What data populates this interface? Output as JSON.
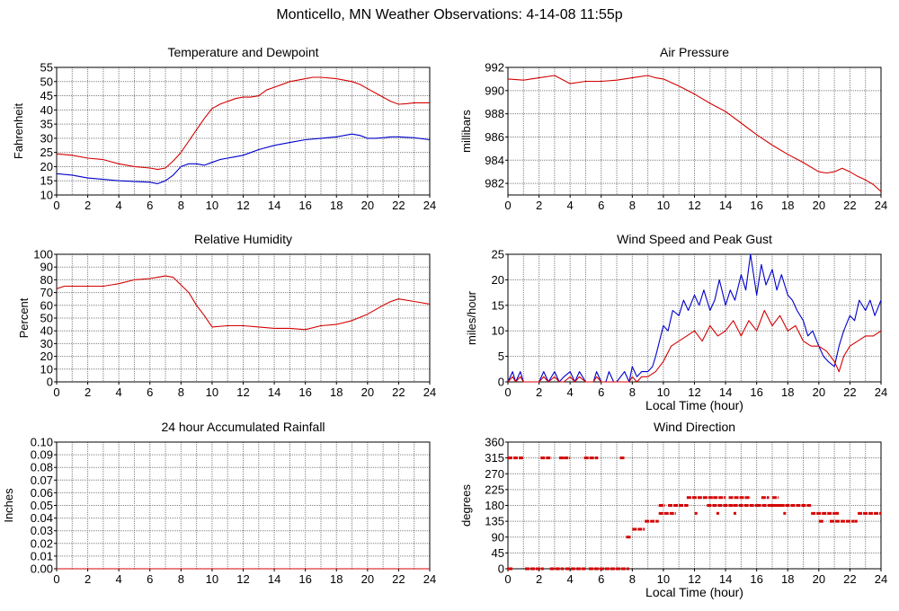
{
  "title": "Monticello, MN Weather Observations: 4-14-08 11:55p",
  "colors": {
    "red": "#d40000",
    "blue": "#0000cc",
    "grid": "#7f7f7f"
  },
  "chart_data": [
    {
      "id": "temp",
      "type": "line",
      "title": "Temperature and Dewpoint",
      "ylabel": "Fahrenheit",
      "xlabel": "",
      "xlim": [
        0,
        24
      ],
      "ylim": [
        10,
        55
      ],
      "xticks": [
        0,
        2,
        4,
        6,
        8,
        10,
        12,
        14,
        16,
        18,
        20,
        22,
        24
      ],
      "yticks": [
        10,
        15,
        20,
        25,
        30,
        35,
        40,
        45,
        50,
        55
      ],
      "grid": true,
      "series": [
        {
          "name": "Temperature",
          "color": "red",
          "x": [
            0,
            1,
            2,
            3,
            4,
            5,
            6,
            6.5,
            7,
            7.5,
            8,
            8.5,
            9,
            9.5,
            10,
            10.5,
            11,
            11.5,
            12,
            12.5,
            13,
            13.5,
            14,
            15,
            16,
            16.5,
            17,
            18,
            19,
            19.5,
            20,
            20.5,
            21,
            21.5,
            22,
            22.5,
            23,
            24
          ],
          "y": [
            24.5,
            24,
            23,
            22.5,
            21,
            20,
            19.5,
            19,
            19.5,
            22,
            25,
            29,
            33,
            37,
            40.5,
            42,
            43,
            44,
            44.5,
            44.5,
            45,
            47,
            48,
            50,
            51,
            51.5,
            51.5,
            51,
            50,
            49,
            47.5,
            46,
            44.5,
            43,
            42,
            42.2,
            42.5,
            42.5
          ]
        },
        {
          "name": "Dewpoint",
          "color": "blue",
          "x": [
            0,
            1,
            2,
            3,
            4,
            5,
            6,
            6.5,
            7,
            7.5,
            8,
            8.5,
            9,
            9.5,
            10,
            10.5,
            11,
            11.5,
            12,
            12.5,
            13,
            14,
            15,
            16,
            17,
            18,
            19,
            19.5,
            20,
            20.5,
            21,
            21.5,
            22,
            23,
            24
          ],
          "y": [
            17.5,
            17,
            16,
            15.5,
            15,
            14.8,
            14.5,
            14,
            15,
            17,
            20,
            21,
            21,
            20.5,
            21.5,
            22.5,
            23,
            23.5,
            24,
            25,
            26,
            27.5,
            28.5,
            29.5,
            30,
            30.5,
            31.5,
            31,
            30,
            30,
            30.2,
            30.5,
            30.5,
            30.2,
            29.5
          ]
        }
      ]
    },
    {
      "id": "pressure",
      "type": "line",
      "title": "Air Pressure",
      "ylabel": "millibars",
      "xlabel": "",
      "xlim": [
        0,
        24
      ],
      "ylim": [
        981,
        992
      ],
      "xticks": [
        0,
        2,
        4,
        6,
        8,
        10,
        12,
        14,
        16,
        18,
        20,
        22,
        24
      ],
      "yticks": [
        982,
        984,
        986,
        988,
        990,
        992
      ],
      "grid": true,
      "series": [
        {
          "name": "Pressure",
          "color": "red",
          "x": [
            0,
            1,
            2,
            3,
            4,
            5,
            6,
            7,
            8,
            9,
            9.5,
            10,
            11,
            12,
            13,
            14,
            15,
            16,
            17,
            18,
            19,
            20,
            20.5,
            21,
            21.5,
            22,
            22.5,
            23,
            23.5,
            24
          ],
          "y": [
            991,
            990.9,
            991.1,
            991.3,
            990.6,
            990.8,
            990.8,
            990.9,
            991.1,
            991.3,
            991.1,
            991,
            990.4,
            989.7,
            988.9,
            988.2,
            987.2,
            986.2,
            985.3,
            984.5,
            983.8,
            983,
            982.9,
            983,
            983.3,
            983,
            982.6,
            982.3,
            981.9,
            981.3
          ]
        }
      ]
    },
    {
      "id": "humidity",
      "type": "line",
      "title": "Relative Humidity",
      "ylabel": "Percent",
      "xlabel": "",
      "xlim": [
        0,
        24
      ],
      "ylim": [
        0,
        100
      ],
      "xticks": [
        0,
        2,
        4,
        6,
        8,
        10,
        12,
        14,
        16,
        18,
        20,
        22,
        24
      ],
      "yticks": [
        0,
        10,
        20,
        30,
        40,
        50,
        60,
        70,
        80,
        90,
        100
      ],
      "grid": true,
      "series": [
        {
          "name": "Relative Humidity",
          "color": "red",
          "x": [
            0,
            0.5,
            1,
            2,
            3,
            4,
            5,
            6,
            6.5,
            7,
            7.5,
            8,
            8.5,
            9,
            9.5,
            10,
            11,
            12,
            13,
            14,
            15,
            16,
            17,
            18,
            19,
            20,
            21,
            21.5,
            22,
            23,
            24
          ],
          "y": [
            73,
            75,
            75,
            75,
            75,
            77,
            80,
            81,
            82,
            83,
            82,
            76,
            70,
            60,
            52,
            43,
            44,
            44,
            43,
            42,
            42,
            41,
            44,
            45,
            48,
            53,
            60,
            63,
            65,
            63,
            61
          ]
        }
      ]
    },
    {
      "id": "wind",
      "type": "line",
      "title": "Wind Speed and Peak Gust",
      "ylabel": "miles/hour",
      "xlabel": "Local Time (hour)",
      "xlim": [
        0,
        24
      ],
      "ylim": [
        0,
        25
      ],
      "xticks": [
        0,
        2,
        4,
        6,
        8,
        10,
        12,
        14,
        16,
        18,
        20,
        22,
        24
      ],
      "yticks": [
        0,
        5,
        10,
        15,
        20,
        25
      ],
      "grid": true,
      "series": [
        {
          "name": "Peak Gust",
          "color": "blue",
          "x": [
            0,
            0.3,
            0.5,
            0.8,
            1,
            1.5,
            2,
            2.3,
            2.6,
            3,
            3.3,
            3.6,
            4,
            4.3,
            4.6,
            5,
            5.5,
            5.7,
            6,
            6.3,
            6.5,
            6.8,
            7,
            7.5,
            7.8,
            8,
            8.3,
            8.6,
            9,
            9.3,
            9.5,
            10,
            10.3,
            10.6,
            11,
            11.3,
            11.6,
            12,
            12.3,
            12.6,
            13,
            13.3,
            13.6,
            14,
            14.3,
            14.6,
            15,
            15.3,
            15.6,
            16,
            16.3,
            16.6,
            17,
            17.3,
            17.6,
            18,
            18.3,
            18.6,
            19,
            19.3,
            19.6,
            20,
            20.3,
            20.6,
            21,
            21.3,
            21.6,
            22,
            22.3,
            22.6,
            23,
            23.3,
            23.6,
            24
          ],
          "y": [
            0,
            2,
            0,
            2,
            0,
            0,
            0,
            2,
            0,
            2,
            0,
            1,
            2,
            0,
            2,
            0,
            0,
            2,
            0,
            0,
            2,
            0,
            0,
            2,
            0,
            3,
            1,
            2,
            2,
            3,
            5,
            11,
            10,
            14,
            13,
            16,
            14,
            17,
            15,
            18,
            14,
            16,
            20,
            15,
            18,
            16,
            21,
            18,
            25,
            17,
            23,
            19,
            22,
            18,
            21,
            17,
            16,
            14,
            12,
            9,
            10,
            7,
            5,
            4,
            3,
            7,
            10,
            13,
            12,
            16,
            14,
            16,
            13,
            16
          ]
        },
        {
          "name": "Wind Speed",
          "color": "red",
          "x": [
            0,
            0.3,
            0.5,
            0.8,
            1,
            1.5,
            2,
            2.3,
            2.6,
            3,
            3.3,
            3.6,
            4,
            4.3,
            4.6,
            5,
            5.5,
            5.7,
            6,
            6.5,
            7,
            7.5,
            7.8,
            8,
            8.3,
            8.6,
            9,
            9.5,
            10,
            10.5,
            11,
            11.5,
            12,
            12.5,
            13,
            13.5,
            14,
            14.5,
            15,
            15.5,
            16,
            16.5,
            17,
            17.5,
            18,
            18.5,
            19,
            19.5,
            20,
            20.5,
            21,
            21.3,
            21.6,
            22,
            22.5,
            23,
            23.5,
            24
          ],
          "y": [
            0,
            1,
            0,
            1,
            0,
            0,
            0,
            1,
            0,
            1,
            0,
            0,
            1,
            0,
            1,
            0,
            0,
            1,
            0,
            0,
            0,
            0,
            0,
            1,
            0,
            1,
            1,
            2,
            4,
            7,
            8,
            9,
            10,
            8,
            11,
            9,
            10,
            12,
            9,
            12,
            10,
            14,
            11,
            13,
            10,
            11,
            8,
            7,
            7,
            6,
            4,
            2,
            5,
            7,
            8,
            9,
            9,
            10
          ]
        }
      ]
    },
    {
      "id": "rain",
      "type": "line",
      "title": "24 hour Accumulated Rainfall",
      "ylabel": "Inches",
      "xlabel": "",
      "xlim": [
        0,
        24
      ],
      "ylim": [
        0,
        0.1
      ],
      "xticks": [
        0,
        2,
        4,
        6,
        8,
        10,
        12,
        14,
        16,
        18,
        20,
        22,
        24
      ],
      "yticks": [
        "0.00",
        "0.01",
        "0.02",
        "0.03",
        "0.04",
        "0.05",
        "0.06",
        "0.07",
        "0.08",
        "0.09",
        "0.10"
      ],
      "grid": true,
      "series": [
        {
          "name": "Rainfall",
          "color": "red",
          "x": [
            0,
            24
          ],
          "y": [
            0,
            0
          ]
        }
      ]
    },
    {
      "id": "direction",
      "type": "scatter",
      "title": "Wind Direction",
      "ylabel": "degrees",
      "xlabel": "Local Time (hour)",
      "xlim": [
        0,
        24
      ],
      "ylim": [
        0,
        360
      ],
      "xticks": [
        0,
        2,
        4,
        6,
        8,
        10,
        12,
        14,
        16,
        18,
        20,
        22,
        24
      ],
      "yticks": [
        0,
        45,
        90,
        135,
        180,
        225,
        270,
        315,
        360
      ],
      "grid": true,
      "segments": [
        [
          0.0,
          0.3,
          0
        ],
        [
          0.0,
          1.0,
          315
        ],
        [
          1.1,
          2.3,
          0
        ],
        [
          2.1,
          2.8,
          315
        ],
        [
          2.7,
          3.6,
          0
        ],
        [
          3.3,
          3.6,
          315
        ],
        [
          3.6,
          4.0,
          315
        ],
        [
          3.7,
          5.0,
          0
        ],
        [
          4.9,
          5.8,
          315
        ],
        [
          5.2,
          7.8,
          0
        ],
        [
          7.2,
          7.5,
          315
        ],
        [
          7.6,
          7.9,
          90
        ],
        [
          8.0,
          8.8,
          112.5
        ],
        [
          8.8,
          9.7,
          135
        ],
        [
          9.7,
          10.1,
          180
        ],
        [
          9.7,
          10.8,
          157.5
        ],
        [
          10.3,
          11.6,
          180
        ],
        [
          11.5,
          13.2,
          202.5
        ],
        [
          12.8,
          14.5,
          180
        ],
        [
          13.2,
          14.0,
          202.5
        ],
        [
          14.2,
          15.6,
          202.5
        ],
        [
          14.5,
          16.0,
          180
        ],
        [
          16.0,
          17.8,
          180
        ],
        [
          16.3,
          16.8,
          202.5
        ],
        [
          17.0,
          17.4,
          202.5
        ],
        [
          16.8,
          19.5,
          180
        ],
        [
          19.5,
          21.0,
          157.5
        ],
        [
          20.0,
          20.3,
          135
        ],
        [
          20.7,
          22.3,
          135
        ],
        [
          21.0,
          21.3,
          157.5
        ],
        [
          22.5,
          24.0,
          157.5
        ]
      ],
      "dots": [
        [
          13.5,
          157.5
        ],
        [
          14.6,
          157.5
        ],
        [
          17.8,
          157.5
        ],
        [
          12.1,
          157.5
        ],
        [
          22.4,
          135
        ]
      ]
    }
  ]
}
